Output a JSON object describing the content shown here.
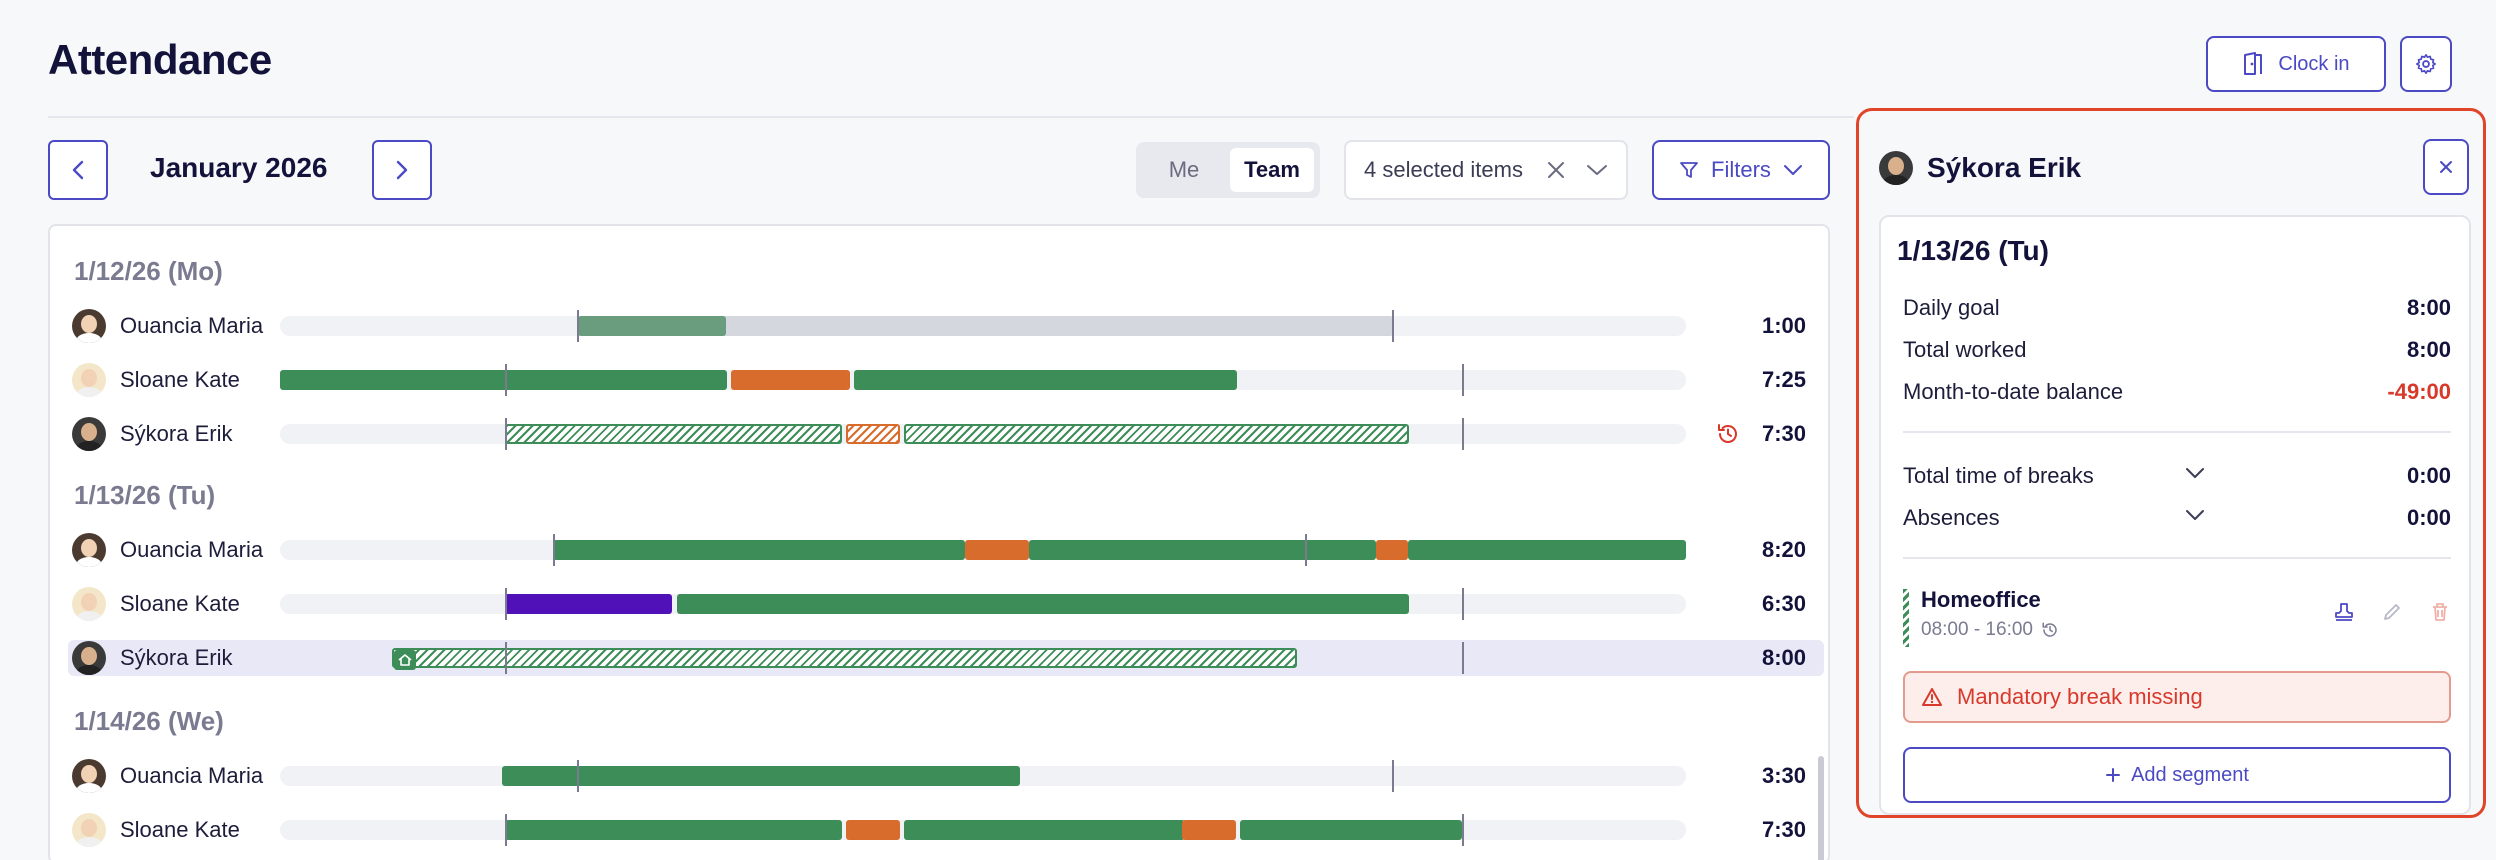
{
  "page": {
    "title": "Attendance"
  },
  "header": {
    "clock_in_label": "Clock in"
  },
  "toolbar": {
    "month": "January 2026",
    "view_options": [
      "Me",
      "Team"
    ],
    "active_view": "Team",
    "selection_label": "4 selected items",
    "filters_label": "Filters"
  },
  "colors": {
    "work": "#3d8d58",
    "break": "#d86c2c",
    "absence": "#5012b8",
    "accent": "#4b4ac4",
    "alert": "#d8392b"
  },
  "days": [
    {
      "date": "1/12/26 (Mo)",
      "rows": [
        {
          "name": "Ouancia Maria",
          "total": "1:00"
        },
        {
          "name": "Sloane Kate",
          "total": "7:25"
        },
        {
          "name": "Sýkora Erik",
          "total": "7:30"
        }
      ]
    },
    {
      "date": "1/13/26 (Tu)",
      "rows": [
        {
          "name": "Ouancia Maria",
          "total": "8:20"
        },
        {
          "name": "Sloane Kate",
          "total": "6:30"
        },
        {
          "name": "Sýkora Erik",
          "total": "8:00"
        }
      ]
    },
    {
      "date": "1/14/26 (We)",
      "rows": [
        {
          "name": "Ouancia Maria",
          "total": "3:30"
        },
        {
          "name": "Sloane Kate",
          "total": "7:30"
        }
      ]
    }
  ],
  "detail": {
    "employee": "Sýkora Erik",
    "date": "1/13/26 (Tu)",
    "daily_goal_label": "Daily goal",
    "daily_goal": "8:00",
    "total_worked_label": "Total worked",
    "total_worked": "8:00",
    "balance_label": "Month-to-date balance",
    "balance": "-49:00",
    "breaks_label": "Total time of breaks",
    "breaks": "0:00",
    "absences_label": "Absences",
    "absences": "0:00",
    "segment": {
      "title": "Homeoffice",
      "time": "08:00 - 16:00"
    },
    "warning": "Mandatory break missing",
    "add_segment_label": "Add segment"
  }
}
